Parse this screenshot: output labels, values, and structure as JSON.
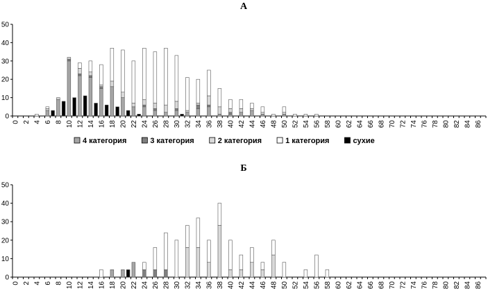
{
  "chart_data": [
    {
      "type": "bar",
      "stacked": true,
      "title": "А",
      "xlabel": "",
      "ylabel": "",
      "ylim": [
        0,
        50
      ],
      "yticks": [
        0,
        10,
        20,
        30,
        40,
        50
      ],
      "grid": false,
      "legend_position": "bottom",
      "categories": [
        "0",
        "1",
        "2",
        "3",
        "4",
        "5",
        "6",
        "7",
        "8",
        "9",
        "10",
        "11",
        "12",
        "13",
        "14",
        "15",
        "16",
        "17",
        "18",
        "19",
        "20",
        "21",
        "22",
        "23",
        "24",
        "25",
        "26",
        "27",
        "28",
        "29",
        "30",
        "31",
        "32",
        "33",
        "34",
        "35",
        "36",
        "37",
        "38",
        "39",
        "40",
        "41",
        "42",
        "43",
        "44",
        "45",
        "46",
        "47",
        "48",
        "49",
        "50",
        "51",
        "52",
        "53",
        "54",
        "55",
        "56",
        "57",
        "58",
        "59",
        "60",
        "61",
        "62",
        "63",
        "64",
        "65",
        "66",
        "67",
        "68",
        "69",
        "70",
        "71",
        "72",
        "73",
        "74",
        "75",
        "76",
        "77",
        "78",
        "79",
        "80",
        "81",
        "82",
        "83",
        "84",
        "85",
        "86",
        "87"
      ],
      "tick_labels": [
        "0",
        "2",
        "4",
        "6",
        "8",
        "10",
        "12",
        "14",
        "16",
        "18",
        "20",
        "22",
        "24",
        "26",
        "28",
        "30",
        "32",
        "34",
        "36",
        "38",
        "40",
        "42",
        "44",
        "46",
        "48",
        "50",
        "52",
        "54",
        "56",
        "58",
        "60",
        "62",
        "64",
        "66",
        "68",
        "70",
        "72",
        "74",
        "76",
        "78",
        "80",
        "82",
        "84",
        "86"
      ],
      "series": [
        {
          "name": "4 категория",
          "color": "#a6a6a6",
          "values": [
            0,
            0,
            0,
            0,
            0,
            0,
            3,
            0,
            9,
            0,
            30,
            0,
            22,
            0,
            21,
            0,
            15,
            0,
            16,
            0,
            10,
            0,
            5,
            0,
            5,
            0,
            3,
            0,
            2,
            0,
            3,
            0,
            2,
            0,
            4,
            0,
            5,
            0,
            1,
            0,
            1,
            0,
            2,
            0,
            3,
            0,
            1,
            0,
            0,
            0,
            1,
            0,
            0,
            0,
            0,
            0,
            0,
            0,
            0,
            0,
            0,
            0,
            0,
            0,
            0,
            0,
            0,
            0,
            0,
            0,
            0,
            0,
            0,
            0,
            0,
            0,
            0,
            0,
            0,
            0,
            0,
            0,
            0,
            0,
            0,
            0,
            0,
            0
          ]
        },
        {
          "name": "3 категория",
          "color": "#7f7f7f",
          "values": [
            0,
            0,
            0,
            0,
            0,
            0,
            0,
            0,
            0,
            0,
            1,
            0,
            1,
            0,
            1,
            0,
            1,
            0,
            0,
            0,
            0,
            0,
            0,
            0,
            1,
            0,
            1,
            0,
            0,
            0,
            1,
            0,
            0,
            0,
            2,
            0,
            1,
            0,
            0,
            0,
            1,
            0,
            0,
            0,
            0,
            0,
            0,
            0,
            0,
            0,
            0,
            0,
            0,
            0,
            0,
            0,
            0,
            0,
            0,
            0,
            0,
            0,
            0,
            0,
            0,
            0,
            0,
            0,
            0,
            0,
            0,
            0,
            0,
            0,
            0,
            0,
            0,
            0,
            0,
            0,
            0,
            0,
            0,
            0,
            0,
            0,
            0,
            0
          ]
        },
        {
          "name": "2 категория",
          "color": "#d9d9d9",
          "values": [
            0,
            0,
            0,
            0,
            0,
            0,
            1,
            0,
            1,
            0,
            1,
            0,
            3,
            0,
            2,
            0,
            1,
            0,
            3,
            0,
            3,
            0,
            2,
            0,
            3,
            0,
            3,
            0,
            4,
            0,
            4,
            0,
            1,
            0,
            1,
            0,
            5,
            0,
            4,
            0,
            2,
            0,
            2,
            0,
            1,
            0,
            1,
            0,
            0,
            0,
            1,
            0,
            0,
            0,
            0,
            0,
            0,
            0,
            0,
            0,
            0,
            0,
            0,
            0,
            0,
            0,
            0,
            0,
            0,
            0,
            0,
            0,
            0,
            0,
            0,
            0,
            0,
            0,
            0,
            0,
            0,
            0,
            0,
            0,
            0,
            0,
            0,
            0
          ]
        },
        {
          "name": "1 категория",
          "color": "#ffffff",
          "values": [
            0,
            0,
            0,
            0,
            1,
            0,
            1,
            0,
            0,
            0,
            0,
            0,
            3,
            0,
            6,
            0,
            11,
            0,
            18,
            0,
            23,
            0,
            23,
            0,
            28,
            0,
            28,
            0,
            31,
            0,
            25,
            0,
            18,
            0,
            13,
            0,
            14,
            0,
            10,
            0,
            5,
            0,
            5,
            0,
            3,
            0,
            3,
            0,
            1,
            0,
            3,
            0,
            1,
            0,
            1,
            0,
            1,
            0,
            0,
            0,
            0,
            0,
            0,
            0,
            0,
            0,
            0,
            0,
            0,
            0,
            0,
            0,
            0,
            0,
            0,
            0,
            0,
            0,
            0,
            0,
            0,
            0,
            0,
            0,
            0,
            0,
            0,
            0
          ]
        },
        {
          "name": "сухие",
          "color": "#000000",
          "values": [
            0,
            0,
            0,
            0,
            0,
            0,
            0,
            3,
            0,
            8,
            0,
            10,
            0,
            11,
            0,
            7,
            0,
            6,
            0,
            5,
            0,
            3,
            0,
            1,
            0,
            0,
            0,
            0,
            0,
            0,
            0,
            1,
            0,
            0,
            0,
            0,
            0,
            0,
            0,
            0,
            0,
            0,
            0,
            0,
            0,
            0,
            0,
            0,
            0,
            0,
            0,
            0,
            0,
            0,
            0,
            0,
            0,
            0,
            0,
            0,
            0,
            0,
            0,
            0,
            0,
            0,
            0,
            0,
            0,
            0,
            0,
            0,
            0,
            0,
            0,
            0,
            0,
            0,
            0,
            0,
            0,
            0,
            0,
            0,
            0,
            0,
            0,
            0
          ]
        }
      ]
    },
    {
      "type": "bar",
      "stacked": true,
      "title": "Б",
      "xlabel": "",
      "ylabel": "",
      "ylim": [
        0,
        50
      ],
      "yticks": [
        0,
        10,
        20,
        30,
        40,
        50
      ],
      "grid": false,
      "categories": [
        "0",
        "1",
        "2",
        "3",
        "4",
        "5",
        "6",
        "7",
        "8",
        "9",
        "10",
        "11",
        "12",
        "13",
        "14",
        "15",
        "16",
        "17",
        "18",
        "19",
        "20",
        "21",
        "22",
        "23",
        "24",
        "25",
        "26",
        "27",
        "28",
        "29",
        "30",
        "31",
        "32",
        "33",
        "34",
        "35",
        "36",
        "37",
        "38",
        "39",
        "40",
        "41",
        "42",
        "43",
        "44",
        "45",
        "46",
        "47",
        "48",
        "49",
        "50",
        "51",
        "52",
        "53",
        "54",
        "55",
        "56",
        "57",
        "58",
        "59",
        "60",
        "61",
        "62",
        "63",
        "64",
        "65",
        "66",
        "67",
        "68",
        "69",
        "70",
        "71",
        "72",
        "73",
        "74",
        "75",
        "76",
        "77",
        "78",
        "79",
        "80",
        "81",
        "82",
        "83",
        "84",
        "85",
        "86",
        "87"
      ],
      "tick_labels": [
        "0",
        "2",
        "4",
        "6",
        "8",
        "10",
        "12",
        "14",
        "16",
        "18",
        "20",
        "22",
        "24",
        "26",
        "28",
        "30",
        "32",
        "34",
        "36",
        "38",
        "40",
        "42",
        "44",
        "46",
        "48",
        "50",
        "52",
        "54",
        "56",
        "58",
        "60",
        "62",
        "64",
        "66",
        "68",
        "70",
        "72",
        "74",
        "76",
        "78",
        "80",
        "82",
        "84",
        "86"
      ],
      "series": [
        {
          "name": "4 категория",
          "color": "#a6a6a6",
          "values": [
            0,
            0,
            0,
            0,
            0,
            0,
            0,
            0,
            0,
            0,
            0,
            0,
            0,
            0,
            0,
            0,
            0,
            0,
            4,
            0,
            4,
            0,
            8,
            0,
            0,
            0,
            0,
            0,
            0,
            0,
            0,
            0,
            0,
            0,
            0,
            0,
            0,
            0,
            0,
            0,
            0,
            0,
            0,
            0,
            0,
            0,
            0,
            0,
            0,
            0,
            0,
            0,
            0,
            0,
            0,
            0,
            0,
            0,
            0,
            0,
            0,
            0,
            0,
            0,
            0,
            0,
            0,
            0,
            0,
            0,
            0,
            0,
            0,
            0,
            0,
            0,
            0,
            0,
            0,
            0,
            0,
            0,
            0,
            0,
            0,
            0,
            0,
            0
          ]
        },
        {
          "name": "3 категория",
          "color": "#7f7f7f",
          "values": [
            0,
            0,
            0,
            0,
            0,
            0,
            0,
            0,
            0,
            0,
            0,
            0,
            0,
            0,
            0,
            0,
            0,
            0,
            0,
            0,
            0,
            0,
            0,
            0,
            4,
            0,
            4,
            0,
            4,
            0,
            0,
            0,
            0,
            0,
            0,
            0,
            0,
            0,
            0,
            0,
            0,
            0,
            0,
            0,
            0,
            0,
            0,
            0,
            0,
            0,
            0,
            0,
            0,
            0,
            0,
            0,
            0,
            0,
            0,
            0,
            0,
            0,
            0,
            0,
            0,
            0,
            0,
            0,
            0,
            0,
            0,
            0,
            0,
            0,
            0,
            0,
            0,
            0,
            0,
            0,
            0,
            0,
            0,
            0,
            0,
            0,
            0,
            0
          ]
        },
        {
          "name": "2 категория",
          "color": "#d9d9d9",
          "values": [
            0,
            0,
            0,
            0,
            0,
            0,
            0,
            0,
            0,
            0,
            0,
            0,
            0,
            0,
            0,
            0,
            0,
            0,
            0,
            0,
            0,
            0,
            0,
            0,
            0,
            0,
            0,
            0,
            0,
            0,
            0,
            0,
            16,
            0,
            16,
            0,
            8,
            0,
            28,
            0,
            4,
            0,
            4,
            0,
            8,
            0,
            4,
            0,
            12,
            0,
            0,
            0,
            0,
            0,
            0,
            0,
            0,
            0,
            0,
            0,
            0,
            0,
            0,
            0,
            0,
            0,
            0,
            0,
            0,
            0,
            0,
            0,
            0,
            0,
            0,
            0,
            0,
            0,
            0,
            0,
            0,
            0,
            0,
            0,
            0,
            0,
            0,
            0
          ]
        },
        {
          "name": "1 категория",
          "color": "#ffffff",
          "values": [
            0,
            0,
            0,
            0,
            0,
            0,
            0,
            0,
            0,
            0,
            0,
            0,
            0,
            0,
            0,
            0,
            4,
            0,
            0,
            0,
            0,
            0,
            0,
            0,
            4,
            0,
            12,
            0,
            20,
            0,
            20,
            0,
            12,
            0,
            16,
            0,
            12,
            0,
            12,
            0,
            16,
            0,
            8,
            0,
            8,
            0,
            4,
            0,
            8,
            0,
            8,
            0,
            0,
            0,
            4,
            0,
            12,
            0,
            4,
            0,
            0,
            0,
            0,
            0,
            0,
            0,
            0,
            0,
            0,
            0,
            0,
            0,
            0,
            0,
            0,
            0,
            0,
            0,
            0,
            0,
            0,
            0,
            0,
            0,
            0,
            0,
            0,
            0
          ]
        },
        {
          "name": "сухие",
          "color": "#000000",
          "values": [
            0,
            0,
            0,
            0,
            0,
            0,
            0,
            0,
            0,
            0,
            0,
            0,
            0,
            0,
            0,
            0,
            0,
            0,
            0,
            0,
            0,
            4,
            0,
            0,
            0,
            0,
            0,
            0,
            0,
            0,
            0,
            0,
            0,
            0,
            0,
            0,
            0,
            0,
            0,
            0,
            0,
            0,
            0,
            0,
            0,
            0,
            0,
            0,
            0,
            0,
            0,
            0,
            0,
            0,
            0,
            0,
            0,
            0,
            0,
            0,
            0,
            0,
            0,
            0,
            0,
            0,
            0,
            0,
            0,
            0,
            0,
            0,
            0,
            0,
            0,
            0,
            0,
            0,
            0,
            0,
            0,
            0,
            0,
            0,
            0,
            0,
            0,
            0
          ]
        }
      ]
    }
  ]
}
